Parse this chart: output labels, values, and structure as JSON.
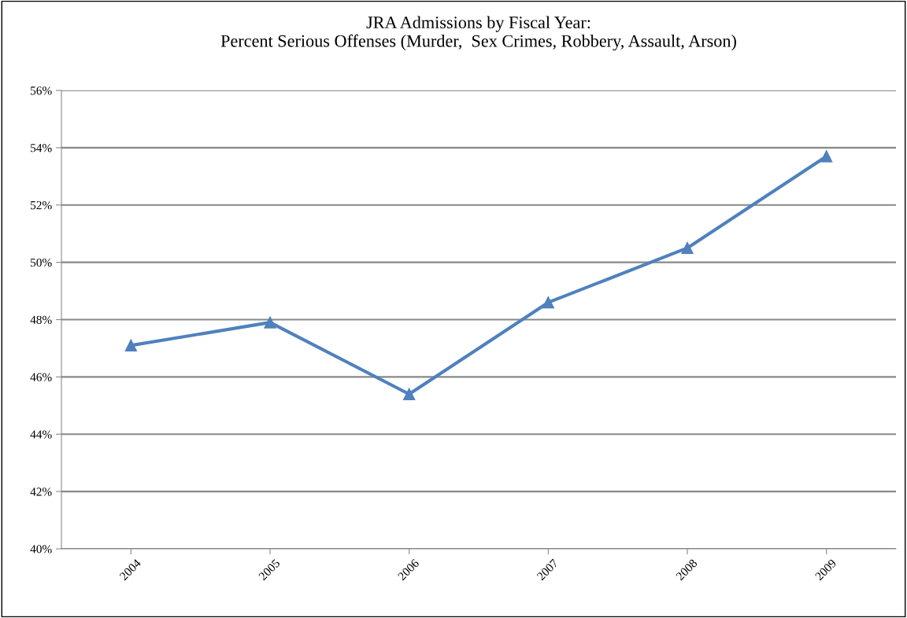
{
  "chart_data": {
    "type": "line",
    "title": "JRA Admissions by Fiscal Year:\nPercent Serious Offenses (Murder,  Sex Crimes, Robbery, Assault, Arson)",
    "categories": [
      "2004",
      "2005",
      "2006",
      "2007",
      "2008",
      "2009"
    ],
    "series": [
      {
        "color": "#4f81bd",
        "values": [
          47.1,
          47.9,
          45.4,
          48.6,
          50.5,
          53.7
        ]
      }
    ],
    "ylim": [
      40,
      56
    ],
    "yticks": [
      {
        "value": 40,
        "label": "40%"
      },
      {
        "value": 42,
        "label": "42%"
      },
      {
        "value": 44,
        "label": "44%"
      },
      {
        "value": 46,
        "label": "46%"
      },
      {
        "value": 48,
        "label": "48%"
      },
      {
        "value": 50,
        "label": "50%"
      },
      {
        "value": 52,
        "label": "52%"
      },
      {
        "value": 54,
        "label": "54%"
      },
      {
        "value": 56,
        "label": "56%"
      }
    ],
    "grid": "y",
    "legend": false,
    "marker": "triangle",
    "line_style": "solid"
  }
}
